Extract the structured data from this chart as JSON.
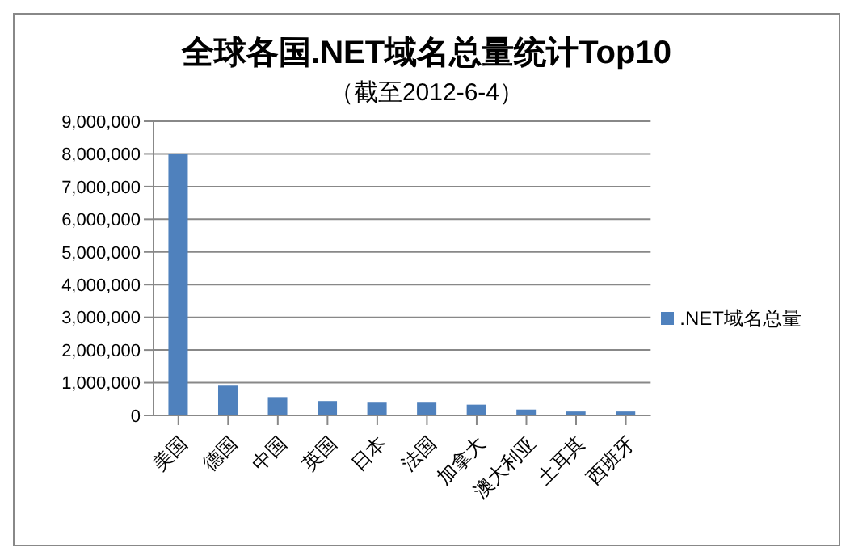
{
  "chart_data": {
    "type": "bar",
    "title": "全球各国.NET域名总量统计Top10",
    "subtitle": "（截至2012-6-4）",
    "categories": [
      "美国",
      "德国",
      "中国",
      "英国",
      "日本",
      "法国",
      "加拿大",
      "澳大利亚",
      "土耳其",
      "西班牙"
    ],
    "series": [
      {
        "name": ".NET域名总量",
        "color": "#4f81bd",
        "values": [
          8000000,
          910000,
          560000,
          440000,
          390000,
          390000,
          330000,
          180000,
          120000,
          120000
        ]
      }
    ],
    "ylim": [
      0,
      9000000
    ],
    "yticks": [
      0,
      {
        "value": 1000000,
        "label": "1,000,000"
      },
      {
        "value": 2000000,
        "label": "2,000,000"
      },
      {
        "value": 3000000,
        "label": "3,000,000"
      },
      {
        "value": 4000000,
        "label": "4,000,000"
      },
      {
        "value": 5000000,
        "label": "5,000,000"
      },
      {
        "value": 6000000,
        "label": "6,000,000"
      },
      {
        "value": 7000000,
        "label": "7,000,000"
      },
      {
        "value": 8000000,
        "label": "8,000,000"
      },
      {
        "value": 9000000,
        "label": "9,000,000"
      }
    ],
    "grid": "y",
    "legend": "right"
  }
}
